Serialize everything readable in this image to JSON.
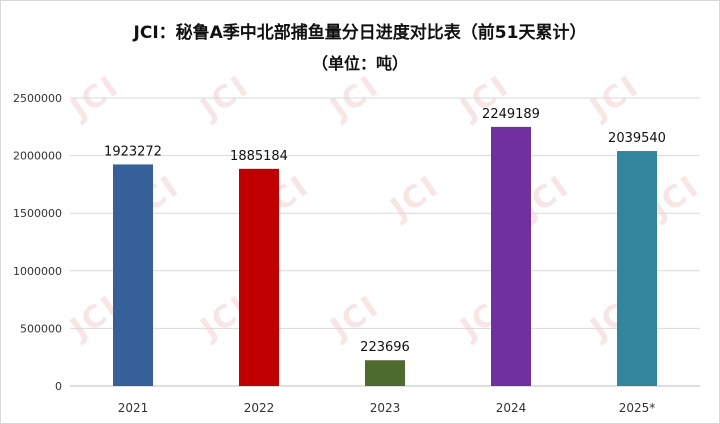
{
  "watermark": "JCI",
  "chart_data": {
    "type": "bar",
    "title": "JCI：秘鲁A季中北部捕鱼量分日进度对比表（前51天累计）",
    "subtitle": "（单位：吨）",
    "categories": [
      "2021",
      "2022",
      "2023",
      "2024",
      "2025*"
    ],
    "values": [
      1923272,
      1885184,
      223696,
      2249189,
      2039540
    ],
    "colors": [
      "#35609a",
      "#c00000",
      "#4e6b2e",
      "#7030a0",
      "#31859c"
    ],
    "yticks": [
      "0",
      "500000",
      "1000000",
      "1500000",
      "2000000",
      "2500000"
    ],
    "ylim": [
      0,
      2500000
    ],
    "grid": true,
    "xlabel": "",
    "ylabel": ""
  }
}
